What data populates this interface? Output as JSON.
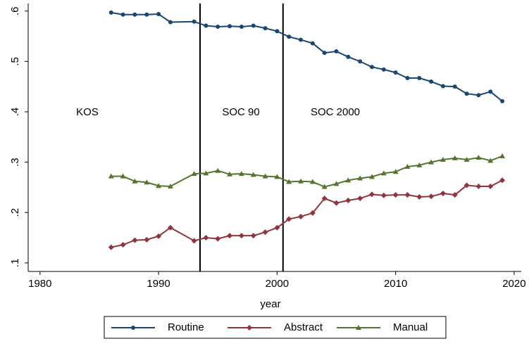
{
  "chart_data": {
    "type": "line",
    "x_label": "year",
    "x": [
      1986,
      1987,
      1988,
      1989,
      1990,
      1991,
      1993,
      1994,
      1995,
      1996,
      1997,
      1998,
      1999,
      2000,
      2001,
      2002,
      2003,
      2004,
      2005,
      2006,
      2007,
      2008,
      2009,
      2010,
      2011,
      2012,
      2013,
      2014,
      2015,
      2016,
      2017,
      2018,
      2019
    ],
    "series": [
      {
        "name": "Routine",
        "color": "#1a476f",
        "marker": "circle",
        "values": [
          0.597,
          0.593,
          0.593,
          0.593,
          0.594,
          0.578,
          0.579,
          0.571,
          0.569,
          0.57,
          0.569,
          0.571,
          0.566,
          0.56,
          0.549,
          0.543,
          0.536,
          0.517,
          0.52,
          0.509,
          0.5,
          0.489,
          0.484,
          0.478,
          0.467,
          0.467,
          0.46,
          0.451,
          0.45,
          0.436,
          0.433,
          0.44,
          0.421
        ]
      },
      {
        "name": "Abstract",
        "color": "#90353b",
        "marker": "diamond",
        "values": [
          0.131,
          0.136,
          0.145,
          0.146,
          0.153,
          0.17,
          0.144,
          0.15,
          0.148,
          0.154,
          0.154,
          0.154,
          0.161,
          0.17,
          0.187,
          0.192,
          0.199,
          0.228,
          0.219,
          0.224,
          0.228,
          0.236,
          0.234,
          0.235,
          0.235,
          0.231,
          0.232,
          0.238,
          0.235,
          0.254,
          0.252,
          0.252,
          0.264
        ]
      },
      {
        "name": "Manual",
        "color": "#55752f",
        "marker": "triangle",
        "values": [
          0.272,
          0.272,
          0.262,
          0.26,
          0.253,
          0.252,
          0.277,
          0.278,
          0.283,
          0.276,
          0.277,
          0.275,
          0.272,
          0.271,
          0.261,
          0.262,
          0.261,
          0.251,
          0.257,
          0.264,
          0.268,
          0.271,
          0.278,
          0.281,
          0.291,
          0.294,
          0.3,
          0.305,
          0.308,
          0.305,
          0.309,
          0.303,
          0.312
        ]
      }
    ],
    "vlines": [
      1993.5,
      2000.5
    ],
    "annotations": [
      "KOS",
      "SOC 90",
      "SOC 2000"
    ],
    "xlim": [
      1979,
      2020.6
    ],
    "ylim": [
      0.083,
      0.615
    ],
    "xticks": [
      1980,
      1990,
      2000,
      2010,
      2020
    ],
    "yticks": [
      {
        "value": 0.1,
        "label": ".1"
      },
      {
        "value": 0.2,
        "label": ".2"
      },
      {
        "value": 0.3,
        "label": ".3"
      },
      {
        "value": 0.4,
        "label": ".4"
      },
      {
        "value": 0.5,
        "label": ".5"
      },
      {
        "value": 0.6,
        "label": ".6"
      }
    ],
    "legend": "bottom"
  }
}
